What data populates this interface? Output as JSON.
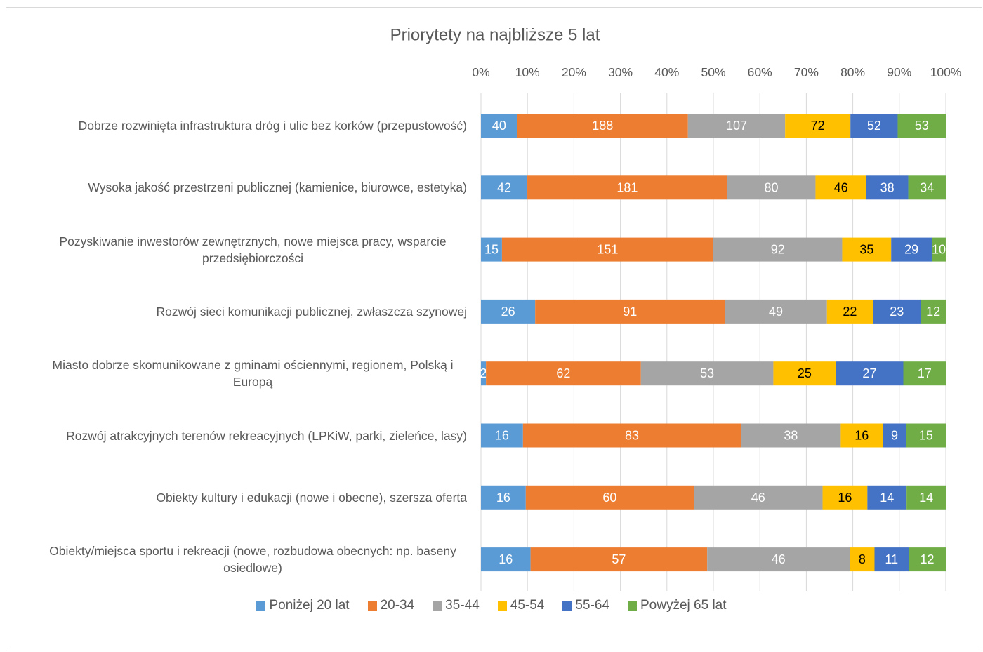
{
  "chart_data": {
    "type": "bar",
    "orientation": "horizontal",
    "stack": "percent",
    "title": "Priorytety na najbliższe 5 lat",
    "categories": [
      "Dobrze rozwinięta infrastruktura dróg i ulic bez korków (przepustowość)",
      "Wysoka jakość przestrzeni publicznej (kamienice, biurowce, estetyka)",
      "Pozyskiwanie inwestorów zewnętrznych, nowe miejsca pracy, wsparcie przedsiębiorczości",
      "Rozwój sieci komunikacji publicznej, zwłaszcza szynowej",
      "Miasto dobrze skomunikowane z gminami ościennymi, regionem, Polską i Europą",
      "Rozwój atrakcyjnych terenów rekreacyjnych (LPKiW, parki, zieleńce, lasy)",
      "Obiekty kultury i edukacji (nowe i obecne), szersza oferta",
      "Obiekty/miejsca sportu i rekreacji (nowe, rozbudowa obecnych: np. baseny osiedlowe)"
    ],
    "series": [
      {
        "name": "Poniżej 20 lat",
        "color": "#5b9bd5",
        "label_color": "#ffffff",
        "values": [
          40,
          42,
          15,
          26,
          2,
          16,
          16,
          16
        ]
      },
      {
        "name": "20-34",
        "color": "#ed7d31",
        "label_color": "#ffffff",
        "values": [
          188,
          181,
          151,
          91,
          62,
          83,
          60,
          57
        ]
      },
      {
        "name": "35-44",
        "color": "#a5a5a5",
        "label_color": "#ffffff",
        "values": [
          107,
          80,
          92,
          49,
          53,
          38,
          46,
          46
        ]
      },
      {
        "name": "45-54",
        "color": "#ffc000",
        "label_color": "#000000",
        "values": [
          72,
          46,
          35,
          22,
          25,
          16,
          16,
          8
        ]
      },
      {
        "name": "55-64",
        "color": "#4472c4",
        "label_color": "#ffffff",
        "values": [
          52,
          38,
          29,
          23,
          27,
          9,
          14,
          11
        ]
      },
      {
        "name": "Powyżej 65 lat",
        "color": "#70ad47",
        "label_color": "#ffffff",
        "values": [
          53,
          34,
          10,
          12,
          17,
          15,
          14,
          12
        ]
      }
    ],
    "xlim": [
      0,
      100
    ],
    "xticks": [
      {
        "value": 0,
        "label": "0%"
      },
      {
        "value": 10,
        "label": "10%"
      },
      {
        "value": 20,
        "label": "20%"
      },
      {
        "value": 30,
        "label": "30%"
      },
      {
        "value": 40,
        "label": "40%"
      },
      {
        "value": 50,
        "label": "50%"
      },
      {
        "value": 60,
        "label": "60%"
      },
      {
        "value": 70,
        "label": "70%"
      },
      {
        "value": 80,
        "label": "80%"
      },
      {
        "value": 90,
        "label": "90%"
      },
      {
        "value": 100,
        "label": "100%"
      }
    ],
    "grid": true,
    "legend": "bottom"
  }
}
